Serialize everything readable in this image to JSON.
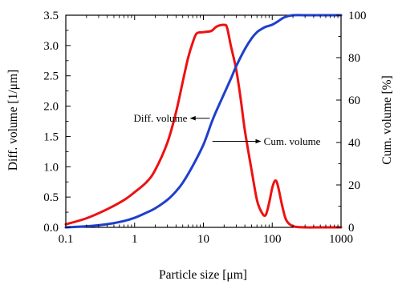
{
  "chart_data": {
    "type": "line",
    "xlabel": "Particle size [μm]",
    "ylabel_left": "Diff. volume [1/μm]",
    "ylabel_right": "Cum. volume [%]",
    "x_scale": "log",
    "xlim": [
      0.1,
      1000
    ],
    "ylim_left": [
      0,
      3.5
    ],
    "ylim_right": [
      0,
      100
    ],
    "x_ticks": [
      0.1,
      1,
      10,
      100,
      1000
    ],
    "x_tick_labels": [
      "0.1",
      "1",
      "10",
      "100",
      "1000"
    ],
    "y_left_ticks": [
      0,
      0.5,
      1,
      1.5,
      2,
      2.5,
      3,
      3.5
    ],
    "y_left_tick_labels": [
      "0.0",
      "0.5",
      "1.0",
      "1.5",
      "2.0",
      "2.5",
      "3.0",
      "3.5"
    ],
    "y_right_ticks": [
      0,
      20,
      40,
      60,
      80,
      100
    ],
    "y_right_tick_labels": [
      "0",
      "20",
      "40",
      "60",
      "80",
      "100"
    ],
    "grid": false,
    "legend": "none",
    "series": [
      {
        "name": "Diff. volume",
        "axis": "left",
        "color": "#ee1111",
        "x": [
          0.1,
          0.2,
          0.4,
          0.7,
          1.0,
          1.5,
          2.0,
          3.0,
          4.0,
          5.0,
          6.0,
          7.0,
          8.0,
          10.0,
          13.0,
          15.0,
          17.0,
          20.0,
          22.0,
          25.0,
          30.0,
          35.0,
          40.0,
          50.0,
          60.0,
          70.0,
          80.0,
          90.0,
          100.0,
          110.0,
          120.0,
          140.0,
          160.0,
          200.0,
          300.0,
          500.0,
          1000.0
        ],
        "y": [
          0.05,
          0.15,
          0.3,
          0.45,
          0.58,
          0.75,
          0.95,
          1.4,
          1.9,
          2.4,
          2.8,
          3.05,
          3.2,
          3.22,
          3.24,
          3.3,
          3.33,
          3.34,
          3.3,
          3.0,
          2.6,
          2.1,
          1.6,
          0.95,
          0.45,
          0.25,
          0.2,
          0.4,
          0.65,
          0.77,
          0.7,
          0.35,
          0.12,
          0.02,
          0.0,
          0.0,
          0.0
        ]
      },
      {
        "name": "Cum. volume",
        "axis": "right",
        "color": "#1f3fcc",
        "x": [
          0.1,
          0.2,
          0.4,
          0.7,
          1.0,
          1.5,
          2.0,
          3.0,
          4.0,
          5.0,
          7.0,
          10.0,
          13.0,
          15.0,
          20.0,
          25.0,
          30.0,
          40.0,
          50.0,
          60.0,
          70.0,
          80.0,
          100.0,
          120.0,
          150.0,
          200.0,
          300.0,
          500.0,
          1000.0
        ],
        "y": [
          0.0,
          0.5,
          1.5,
          3.0,
          4.5,
          7.0,
          9.0,
          13.0,
          17.0,
          21.0,
          29.0,
          39.0,
          49.0,
          54.0,
          63.0,
          70.0,
          76.0,
          84.0,
          89.0,
          92.0,
          93.5,
          94.5,
          95.5,
          97.0,
          99.0,
          100.0,
          100.0,
          100.0,
          100.0
        ]
      }
    ],
    "annotations": [
      {
        "text": "Diff. volume",
        "arrow": "left",
        "x": 6.5,
        "y": 1.8,
        "axis": "left"
      },
      {
        "text": "Cum. volume",
        "arrow": "right",
        "x": 13.5,
        "y": 1.42,
        "axis": "left"
      }
    ]
  }
}
